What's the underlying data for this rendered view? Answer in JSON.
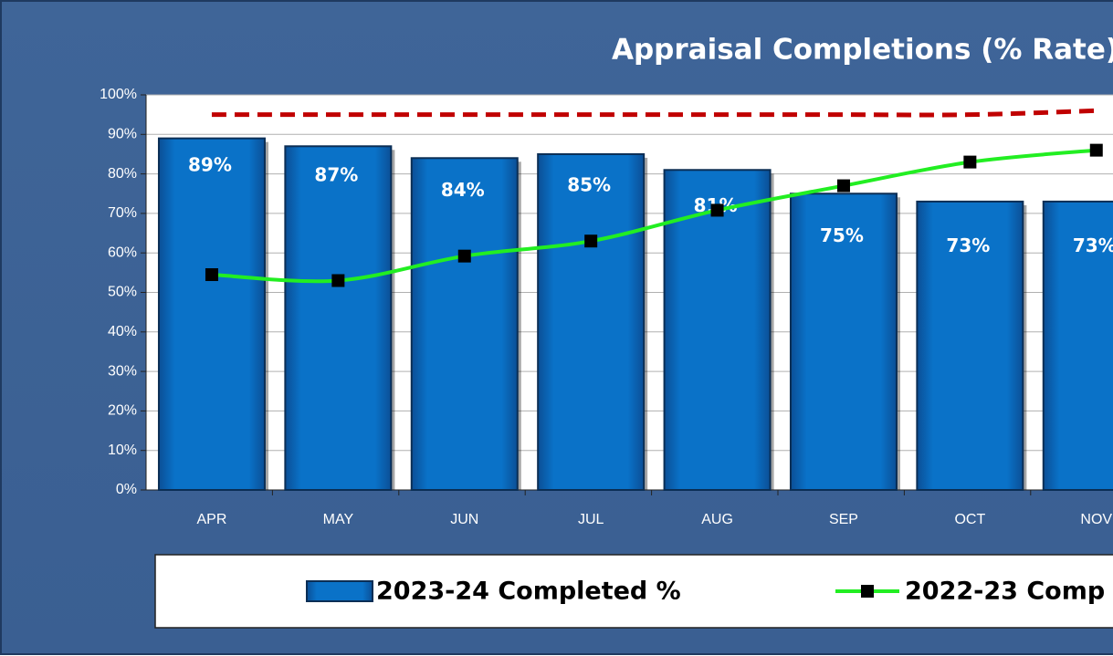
{
  "chart_data": {
    "type": "bar",
    "title": "Appraisal Completions (% Rate)",
    "categories": [
      "APR",
      "MAY",
      "JUN",
      "JUL",
      "AUG",
      "SEP",
      "OCT",
      "NOV"
    ],
    "series": [
      {
        "name": "2023-24 Completed %",
        "type": "bar",
        "color": "#0a6fc2",
        "values": [
          89,
          87,
          84,
          85,
          81,
          75,
          73,
          73
        ],
        "value_labels": [
          "89%",
          "87%",
          "84%",
          "85%",
          "81%",
          "75%",
          "73%",
          "73%"
        ]
      },
      {
        "name": "2022-23 Comp",
        "type": "line",
        "color": "#22ee22",
        "values": [
          54.5,
          53,
          59.2,
          63,
          70.8,
          77,
          83,
          86
        ]
      },
      {
        "type": "line",
        "color": "#c00000",
        "dash": true,
        "values": [
          95,
          95,
          95,
          95,
          95,
          95,
          95,
          96
        ]
      }
    ],
    "ylim": [
      0,
      100
    ],
    "yticks": [
      {
        "value": 0,
        "label": "0%"
      },
      {
        "value": 10,
        "label": "10%"
      },
      {
        "value": 20,
        "label": "20%"
      },
      {
        "value": 30,
        "label": "30%"
      },
      {
        "value": 40,
        "label": "40%"
      },
      {
        "value": 50,
        "label": "50%"
      },
      {
        "value": 60,
        "label": "60%"
      },
      {
        "value": 70,
        "label": "70%"
      },
      {
        "value": 80,
        "label": "80%"
      },
      {
        "value": 90,
        "label": "90%"
      },
      {
        "value": 100,
        "label": "100%"
      }
    ],
    "grid": true,
    "legend": "bottom"
  }
}
